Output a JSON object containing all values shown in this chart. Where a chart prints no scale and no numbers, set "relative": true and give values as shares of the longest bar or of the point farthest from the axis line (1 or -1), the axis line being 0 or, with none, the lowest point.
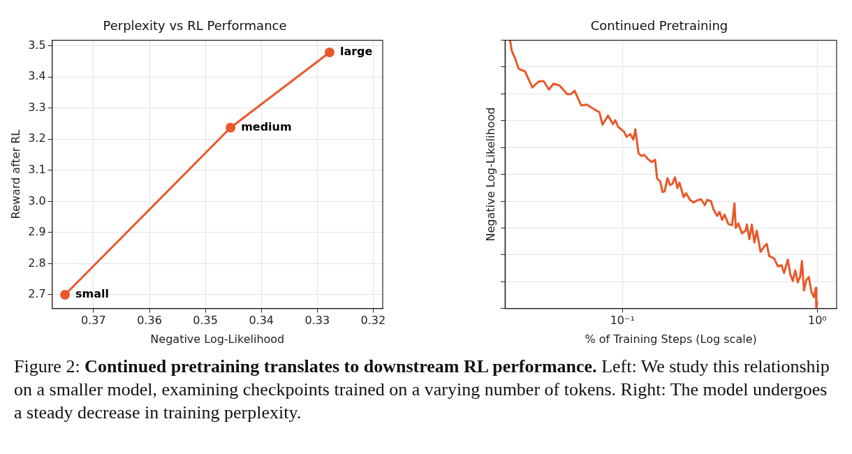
{
  "chart_data": [
    {
      "type": "line",
      "title": "Perplexity vs RL Performance",
      "xlabel": "Negative Log-Likelihood",
      "ylabel": "Reward after RL",
      "x": [
        0.3751,
        0.3455,
        0.3278
      ],
      "values": [
        2.7,
        3.237,
        3.479
      ],
      "color": "#e8582a",
      "marker": "circle",
      "xlim": [
        0.3774,
        0.3183
      ],
      "xticks": [
        0.37,
        0.36,
        0.35,
        0.34,
        0.33,
        0.32
      ],
      "ylim": [
        2.656,
        3.518
      ],
      "yticks": [
        2.7,
        2.8,
        2.9,
        {
          "value": 3.0,
          "label": "3.0"
        },
        3.1,
        3.2,
        3.3,
        3.4,
        3.5
      ],
      "grid": true,
      "annotations": [
        {
          "text": "small",
          "x": 0.3751,
          "y": 2.7
        },
        {
          "text": "medium",
          "x": 0.3455,
          "y": 3.237
        },
        {
          "text": "large",
          "x": 0.3278,
          "y": 3.479
        },
        "Figure 2: ",
        "Continued pretraining translates to downstream RL performance.",
        " Left: We study this relationship on a smaller model, examining checkpoints trained on a varying number of tokens. Right: The model undergoes a steady decrease in training perplexity."
      ]
    },
    {
      "type": "line",
      "title": "Continued Pretraining",
      "xlabel": "% of Training Steps (Log scale)",
      "ylabel": "Negative Log-Likelihood",
      "relative": true,
      "log": "x",
      "grid": true,
      "color": "#e8582a",
      "marker": "none",
      "xlim": [
        0.025,
        1.256
      ],
      "xticks": [
        {
          "value": 0.1,
          "label": "10⁻¹"
        },
        {
          "value": 1,
          "label": "10⁰"
        }
      ],
      "x": [
        0.02652,
        0.02708,
        0.02812,
        0.02938,
        0.03162,
        0.03453,
        0.03715,
        0.03938,
        0.04201,
        0.04428,
        0.04766,
        0.05204,
        0.05438,
        0.05683,
        0.0615,
        0.06576,
        0.07181,
        0.07615,
        0.0791,
        0.08436,
        0.08948,
        0.09214,
        0.09487,
        0.1021,
        0.1051,
        0.1098,
        0.1138,
        0.1165,
        0.121,
        0.1253,
        0.129,
        0.1348,
        0.1409,
        0.1472,
        0.1507,
        0.1561,
        0.1607,
        0.1645,
        0.1704,
        0.1755,
        0.1807,
        0.1861,
        0.1916,
        0.1962,
        0.2062,
        0.2123,
        0.2219,
        0.2318,
        0.2422,
        0.2532,
        0.2645,
        0.2724,
        0.2846,
        0.293,
        0.3062,
        0.3153,
        0.3247,
        0.3343,
        0.3493,
        0.365,
        0.3759,
        0.3815,
        0.3928,
        0.4104,
        0.4287,
        0.4351,
        0.448,
        0.4613,
        0.475,
        0.4892,
        0.5112,
        0.5341,
        0.5499,
        0.5663,
        0.6006,
        0.6276,
        0.6558,
        0.6753,
        0.7057,
        0.7267,
        0.7482,
        0.7704,
        0.7933,
        0.8168,
        0.834,
        0.8537,
        0.879,
        0.9051,
        0.9322,
        0.9598,
        0.9826,
        0.9883,
        1.0
      ],
      "values": [
        1.0,
        0.96,
        0.933,
        0.893,
        0.884,
        0.824,
        0.846,
        0.848,
        0.816,
        0.838,
        0.831,
        0.799,
        0.799,
        0.812,
        0.757,
        0.76,
        0.742,
        0.732,
        0.685,
        0.719,
        0.687,
        0.702,
        0.678,
        0.658,
        0.64,
        0.65,
        0.63,
        0.668,
        0.578,
        0.568,
        0.573,
        0.558,
        0.546,
        0.554,
        0.484,
        0.474,
        0.434,
        0.436,
        0.486,
        0.46,
        0.465,
        0.489,
        0.449,
        0.469,
        0.415,
        0.43,
        0.405,
        0.395,
        0.403,
        0.407,
        0.385,
        0.405,
        0.4,
        0.37,
        0.345,
        0.36,
        0.33,
        0.35,
        0.315,
        0.31,
        0.392,
        0.3,
        0.317,
        0.28,
        0.29,
        0.313,
        0.258,
        0.313,
        0.246,
        0.29,
        0.211,
        0.231,
        0.241,
        0.196,
        0.186,
        0.157,
        0.161,
        0.132,
        0.182,
        0.127,
        0.102,
        0.142,
        0.097,
        0.119,
        0.177,
        0.067,
        0.107,
        0.117,
        0.062,
        0.042,
        0.077,
        0,
        0.026
      ]
    }
  ]
}
